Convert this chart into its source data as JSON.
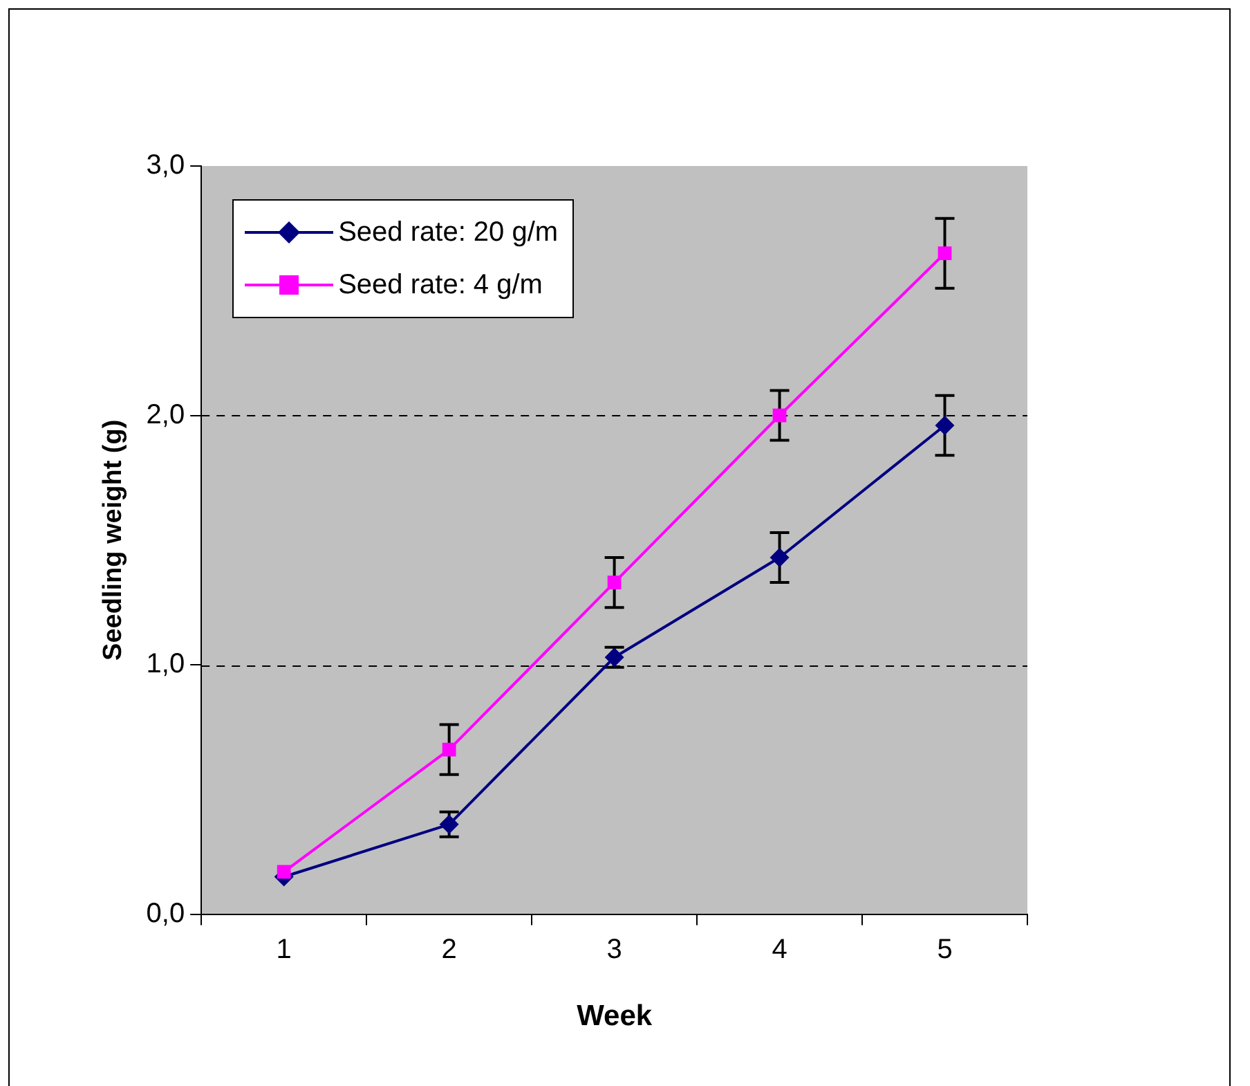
{
  "chart_data": {
    "type": "line",
    "xlabel": "Week",
    "ylabel": "Seedling weight (g)",
    "categories": [
      "1",
      "2",
      "3",
      "4",
      "5"
    ],
    "series": [
      {
        "name": "Seed rate: 20 g/m",
        "color": "#000080",
        "marker": "diamond",
        "values": [
          0.15,
          0.36,
          1.03,
          1.43,
          1.96
        ],
        "errors": [
          null,
          0.05,
          0.04,
          0.1,
          0.12
        ]
      },
      {
        "name": "Seed rate: 4 g/m",
        "color": "#ff00ff",
        "marker": "square",
        "values": [
          0.17,
          0.66,
          1.33,
          2.0,
          2.65
        ],
        "errors": [
          null,
          0.1,
          0.1,
          0.1,
          0.14
        ]
      }
    ],
    "ylim": [
      0,
      3
    ],
    "yticks": [
      {
        "value": 0,
        "label": "0,0"
      },
      {
        "value": 1,
        "label": "1,0"
      },
      {
        "value": 2,
        "label": "2,0"
      },
      {
        "value": 3,
        "label": "3,0"
      }
    ],
    "grid": "y",
    "line_style": "solid",
    "legend": "top left"
  }
}
